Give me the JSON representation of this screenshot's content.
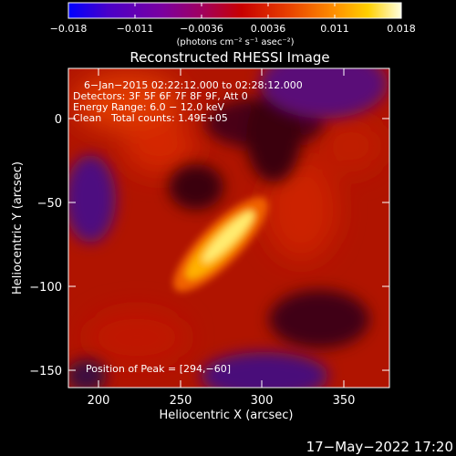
{
  "colorbar": {
    "ticks": [
      "−0.018",
      "−0.011",
      "−0.0036",
      "0.0036",
      "0.011",
      "0.018"
    ],
    "units": "(photons cm⁻² s⁻¹ asec⁻²)",
    "colors": [
      "#0000ff",
      "#4a00c8",
      "#7a00a0",
      "#a00060",
      "#c80000",
      "#e84000",
      "#ff9000",
      "#ffd000",
      "#ffffe0"
    ]
  },
  "plot": {
    "title": "Reconstructed RHESSI Image",
    "xlabel": "Heliocentric X (arcsec)",
    "ylabel": "Heliocentric Y (arcsec)",
    "xticks": [
      "200",
      "250",
      "300",
      "350"
    ],
    "yticks": [
      "0",
      "−50",
      "−100",
      "−150"
    ],
    "xtick_values": [
      200,
      250,
      300,
      350
    ],
    "ytick_values": [
      0,
      -50,
      -100,
      -150
    ],
    "xlim": [
      185,
      375
    ],
    "ylim": [
      -165,
      25
    ]
  },
  "annotations": {
    "time_range": "6−Jan−2015 02:22:12.000 to 02:28:12.000",
    "detectors": "Detectors: 3F 5F 6F 7F 8F 9F, Att 0",
    "energy": "Energy Range: 6.0 − 12.0 keV",
    "clean_label": "Clean",
    "counts": "Total counts: 1.49E+05",
    "peak": "Position of Peak = [294,−60]"
  },
  "footer": {
    "timestamp": "17−May−2022 17:20"
  }
}
